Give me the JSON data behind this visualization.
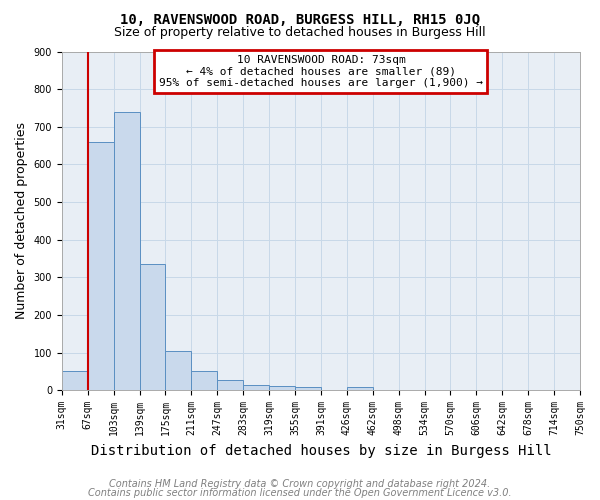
{
  "title": "10, RAVENSWOOD ROAD, BURGESS HILL, RH15 0JQ",
  "subtitle": "Size of property relative to detached houses in Burgess Hill",
  "xlabel": "Distribution of detached houses by size in Burgess Hill",
  "ylabel": "Number of detached properties",
  "bin_labels": [
    "31sqm",
    "67sqm",
    "103sqm",
    "139sqm",
    "175sqm",
    "211sqm",
    "247sqm",
    "283sqm",
    "319sqm",
    "355sqm",
    "391sqm",
    "426sqm",
    "462sqm",
    "498sqm",
    "534sqm",
    "570sqm",
    "606sqm",
    "642sqm",
    "678sqm",
    "714sqm",
    "750sqm"
  ],
  "bar_values": [
    50,
    660,
    740,
    335,
    105,
    50,
    27,
    15,
    12,
    8,
    0,
    8,
    0,
    0,
    0,
    0,
    0,
    0,
    0,
    0
  ],
  "bar_color": "#c9d9ec",
  "bar_edge_color": "#5a8fc2",
  "vline_x": 1,
  "vline_color": "#cc0000",
  "annotation_text": "10 RAVENSWOOD ROAD: 73sqm\n← 4% of detached houses are smaller (89)\n95% of semi-detached houses are larger (1,900) →",
  "annotation_box_color": "#cc0000",
  "ylim": [
    0,
    900
  ],
  "yticks": [
    0,
    100,
    200,
    300,
    400,
    500,
    600,
    700,
    800,
    900
  ],
  "footer_line1": "Contains HM Land Registry data © Crown copyright and database right 2024.",
  "footer_line2": "Contains public sector information licensed under the Open Government Licence v3.0.",
  "bg_color": "#ffffff",
  "plot_bg_color": "#e8eef5",
  "grid_color": "#c8d8e8",
  "title_fontsize": 10,
  "subtitle_fontsize": 9,
  "axis_label_fontsize": 9,
  "tick_fontsize": 7,
  "annotation_fontsize": 8,
  "footer_fontsize": 7
}
